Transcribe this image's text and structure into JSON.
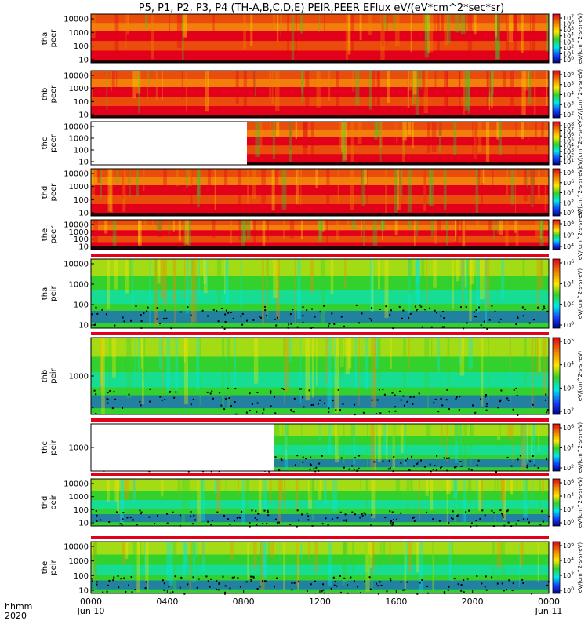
{
  "title": "P5, P1, P2, P3, P4 (TH-A,B,C,D,E) PEIR,PEER EFlux eV/(eV*cm^2*sec*sr)",
  "footer": {
    "label_top": "hhmm",
    "label_bottom": "2020"
  },
  "colors": {
    "red": "#e2001a",
    "orange": "#f08a00",
    "yellow": "#ffe600",
    "green": "#33d12e",
    "cyan": "#00e8e8",
    "blue": "#1440ff",
    "black": "#000000",
    "white": "#ffffff"
  },
  "chart_data": {
    "type": "heatmap",
    "x_axis": {
      "range": [
        "0000",
        "0000"
      ],
      "tick_labels": [
        "0000",
        "0400",
        "0800",
        "1200",
        "1600",
        "2000",
        "0000"
      ],
      "date_labels": [
        "Jun 10",
        "Jun 11"
      ]
    },
    "panels": [
      {
        "id": "tha-peer",
        "ylabel": [
          "tha",
          "peer"
        ],
        "yticks": [
          "10000",
          "1000",
          "100",
          "10"
        ],
        "colorbar_ticks": [
          "10^7",
          "10^6",
          "10^5",
          "10^4",
          "10^3",
          "10^2",
          "10^1",
          "10^0"
        ],
        "colorbar_label": "eV/(cm^2-s-sr-eV)"
      },
      {
        "id": "thb-peer",
        "ylabel": [
          "thb",
          "peer"
        ],
        "yticks": [
          "10000",
          "1000",
          "100",
          "10"
        ],
        "colorbar_ticks": [
          "10^6",
          "10^5",
          "10^4",
          "10^3",
          "10^2"
        ],
        "colorbar_label": "eV/(cm^2-s-sr-eV)"
      },
      {
        "id": "thc-peer",
        "ylabel": [
          "thc",
          "peer"
        ],
        "yticks": [
          "10000",
          "1000",
          "100",
          "10"
        ],
        "colorbar_ticks": [
          "10^8",
          "10^7",
          "10^6",
          "10^5",
          "10^4",
          "10^3",
          "10^2",
          "10^1"
        ],
        "colorbar_label": "eV/(cm^2-s-sr-eV)"
      },
      {
        "id": "thd-peer",
        "ylabel": [
          "thd",
          "peer"
        ],
        "yticks": [
          "10000",
          "1000",
          "100",
          "10"
        ],
        "colorbar_ticks": [
          "10^8",
          "10^6",
          "10^4",
          "10^2",
          "10^0"
        ],
        "colorbar_label": "eV/(cm^2-s-sr-eV)"
      },
      {
        "id": "the-peer",
        "ylabel": [
          "the",
          "peer"
        ],
        "yticks": [
          "10000",
          "1000",
          "100",
          "10"
        ],
        "colorbar_ticks": [
          "10^8",
          "10^6",
          "10^4"
        ],
        "colorbar_label": "eV/(cm^2-s-sr-eV)"
      },
      {
        "id": "tha-peir",
        "ylabel": [
          "tha",
          "peir"
        ],
        "yticks": [
          "10000",
          "1000",
          "100",
          "10"
        ],
        "colorbar_ticks": [
          "10^6",
          "10^4",
          "10^2",
          "10^0"
        ],
        "colorbar_label": "eV/(cm^2-s-sr-eV)"
      },
      {
        "id": "thb-peir",
        "ylabel": [
          "thb",
          "peir"
        ],
        "yticks": [
          "1000"
        ],
        "colorbar_ticks": [
          "10^5",
          "10^4",
          "10^3",
          "10^2"
        ],
        "colorbar_label": "eV/(cm^2-s-sr-eV)"
      },
      {
        "id": "thc-peir",
        "ylabel": [
          "thc",
          "peir"
        ],
        "yticks": [
          "1000"
        ],
        "colorbar_ticks": [
          "10^6",
          "10^4",
          "10^2"
        ],
        "colorbar_label": "eV/(cm^2-s-sr-eV)"
      },
      {
        "id": "thd-peir",
        "ylabel": [
          "thd",
          "peir"
        ],
        "yticks": [
          "10000",
          "1000",
          "100",
          "10"
        ],
        "colorbar_ticks": [
          "10^6",
          "10^4",
          "10^2",
          "10^0"
        ],
        "colorbar_label": "eV/(cm^2-s-sr-eV)"
      },
      {
        "id": "the-peir",
        "ylabel": [
          "the",
          "peir"
        ],
        "yticks": [
          "10000",
          "1000",
          "100",
          "10"
        ],
        "colorbar_ticks": [
          "10^6",
          "10^4",
          "10^2",
          "10^0"
        ],
        "colorbar_label": "eV/(cm^2-s-sr-eV)"
      }
    ]
  }
}
